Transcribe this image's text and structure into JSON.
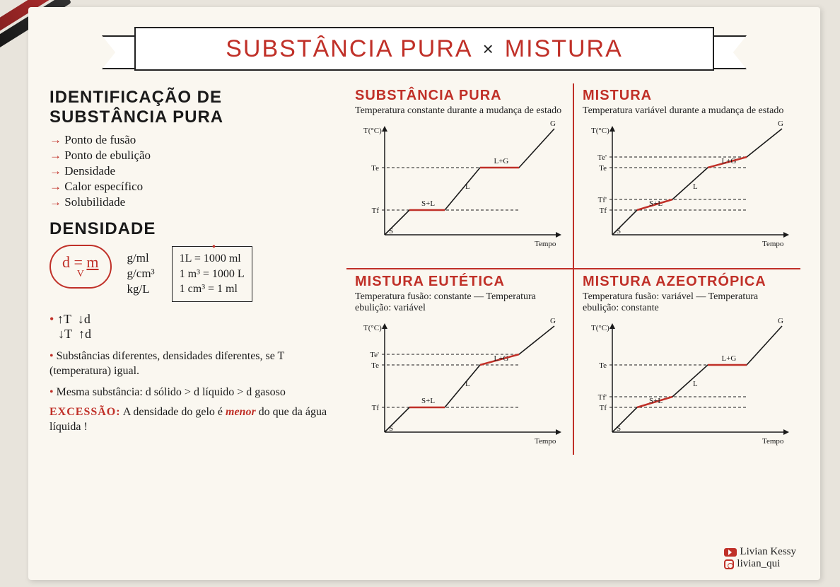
{
  "title": {
    "a": "SUBSTÂNCIA PURA",
    "x": "×",
    "b": "MISTURA"
  },
  "left": {
    "sec1": "IDENTIFICAÇÃO DE SUBSTÂNCIA PURA",
    "bullets": [
      "Ponto de fusão",
      "Ponto de ebulição",
      "Densidade",
      "Calor específico",
      "Solubilidade"
    ],
    "sec2": "DENSIDADE",
    "formula": "d = m / V",
    "units": [
      "g/ml",
      "g/cm³",
      "kg/L"
    ],
    "conv": [
      "1L = 1000 ml",
      "1 m³ = 1000 L",
      "1 cm³ = 1 ml"
    ],
    "rel1a": "T",
    "rel1b": "d",
    "note1": "Substâncias diferentes, densidades diferentes, se T (temperatura) igual.",
    "note2": "Mesma substância:  d sólido > d líquido > d gasoso",
    "exc_label": "EXCESSÃO:",
    "exc_text_a": "A densidade do gelo é ",
    "exc_text_b": "menor",
    "exc_text_c": " do que da água líquida !"
  },
  "panels": [
    {
      "title": "SUBSTÂNCIA PURA",
      "desc": "Temperatura constante durante a mudança de estado",
      "yticks": [
        "Te",
        "Tf"
      ],
      "flat": "both",
      "labels": [
        "S",
        "S+L",
        "L",
        "L+G",
        "G"
      ]
    },
    {
      "title": "MISTURA",
      "desc": "Temperatura variável durante a mudança de estado",
      "yticks": [
        "Te'",
        "Te",
        "Tf'",
        "Tf"
      ],
      "flat": "none",
      "labels": [
        "S",
        "S+L",
        "L",
        "L+G",
        "G"
      ]
    },
    {
      "title": "MISTURA EUTÉTICA",
      "desc": "Temperatura fusão: constante — Temperatura ebulição: variável",
      "yticks": [
        "Te'",
        "Te",
        "Tf"
      ],
      "flat": "fusion",
      "labels": [
        "S",
        "S+L",
        "L",
        "L+G",
        "G"
      ]
    },
    {
      "title": "MISTURA AZEOTRÓPICA",
      "desc": "Temperatura fusão: variável — Temperatura ebulição: constante",
      "yticks": [
        "Te",
        "Tf'",
        "Tf"
      ],
      "flat": "boil",
      "labels": [
        "S",
        "S+L",
        "L",
        "L+G",
        "G"
      ]
    }
  ],
  "axis": {
    "y": "T(°C)",
    "x": "Tempo"
  },
  "colors": {
    "red": "#c03028",
    "ink": "#1a1a1a",
    "paper": "#faf7f0"
  },
  "credits": {
    "youtube": "Livian Kessy",
    "instagram": "livian_qui"
  }
}
